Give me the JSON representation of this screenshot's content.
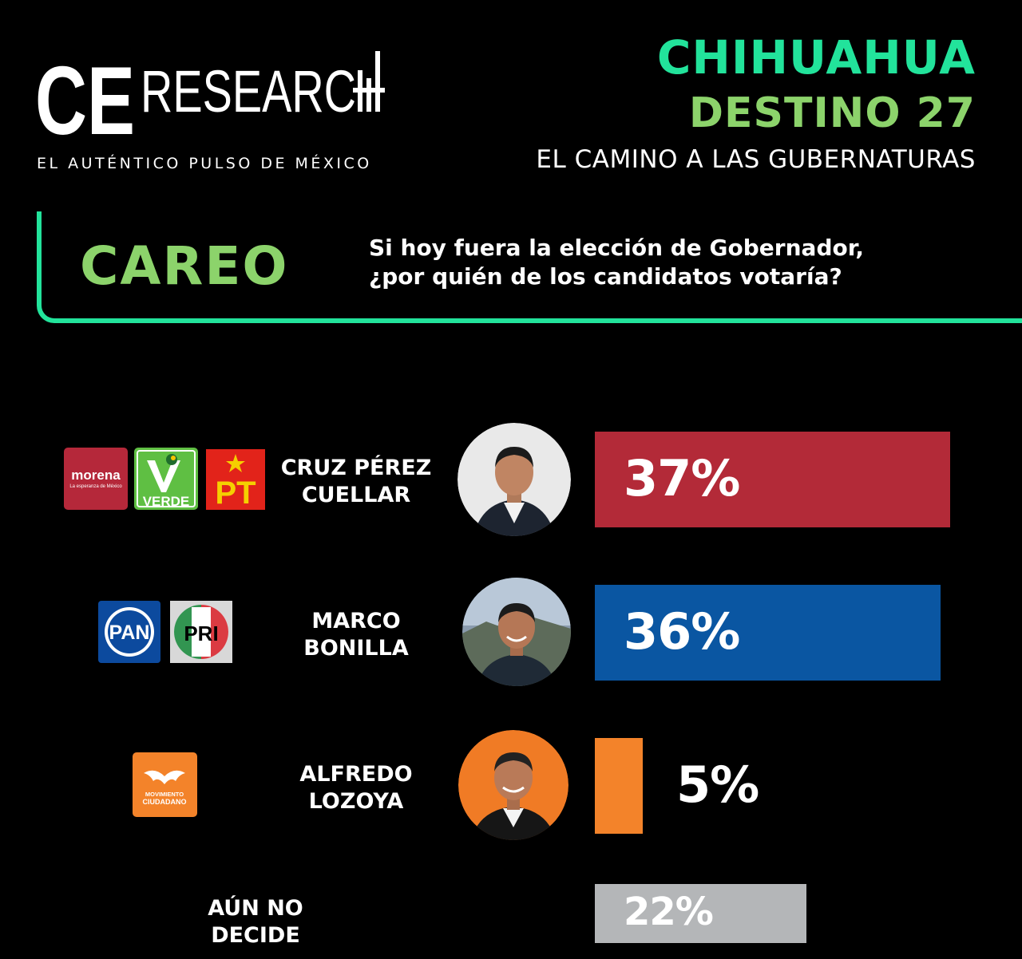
{
  "brand": {
    "logo_text": "CERESEARCH",
    "tagline": "EL AUTÉNTICO PULSO DE MÉXICO"
  },
  "header": {
    "state": "CHIHUAHUA",
    "destino": "DESTINO 27",
    "subtitle": "EL CAMINO A LAS GUBERNATURAS"
  },
  "section": {
    "label": "CAREO",
    "question_line1": "Si hoy fuera la elección de Gobernador,",
    "question_line2": "¿por quién de los candidatos votaría?"
  },
  "parties": {
    "morena": {
      "name": "morena",
      "tagline": "La esperanza de México",
      "color": "#b5283a"
    },
    "verde": {
      "name": "VERDE",
      "color": "#5fbf43"
    },
    "pt": {
      "name": "PT",
      "color": "#e2231a"
    },
    "pan": {
      "name": "PAN",
      "color": "#0c4a9e"
    },
    "pri": {
      "name": "PRI"
    },
    "mc": {
      "name": "MOVIMIENTO CIUDADANO",
      "color": "#f3832a"
    }
  },
  "chart_data": {
    "type": "bar",
    "categories": [
      "CRUZ PÉREZ CUELLAR",
      "MARCO BONILLA",
      "ALFREDO LOZOYA",
      "AÚN NO DECIDE"
    ],
    "values": [
      37,
      36,
      5,
      22
    ],
    "labels": [
      "37%",
      "36%",
      "5%",
      "22%"
    ],
    "colors": [
      "#b32a38",
      "#0a56a2",
      "#f3832a",
      "#b4b6b8"
    ],
    "title": "",
    "xlabel": "",
    "ylabel": "",
    "xlim": [
      0,
      37
    ]
  },
  "rows": [
    {
      "name_line1": "CRUZ PÉREZ",
      "name_line2": "CUELLAR",
      "pct": "37%"
    },
    {
      "name_line1": "MARCO",
      "name_line2": "BONILLA",
      "pct": "36%"
    },
    {
      "name_line1": "ALFREDO",
      "name_line2": "LOZOYA",
      "pct": "5%"
    },
    {
      "name_line1": "AÚN NO",
      "name_line2": "DECIDE",
      "pct": "22%"
    }
  ]
}
